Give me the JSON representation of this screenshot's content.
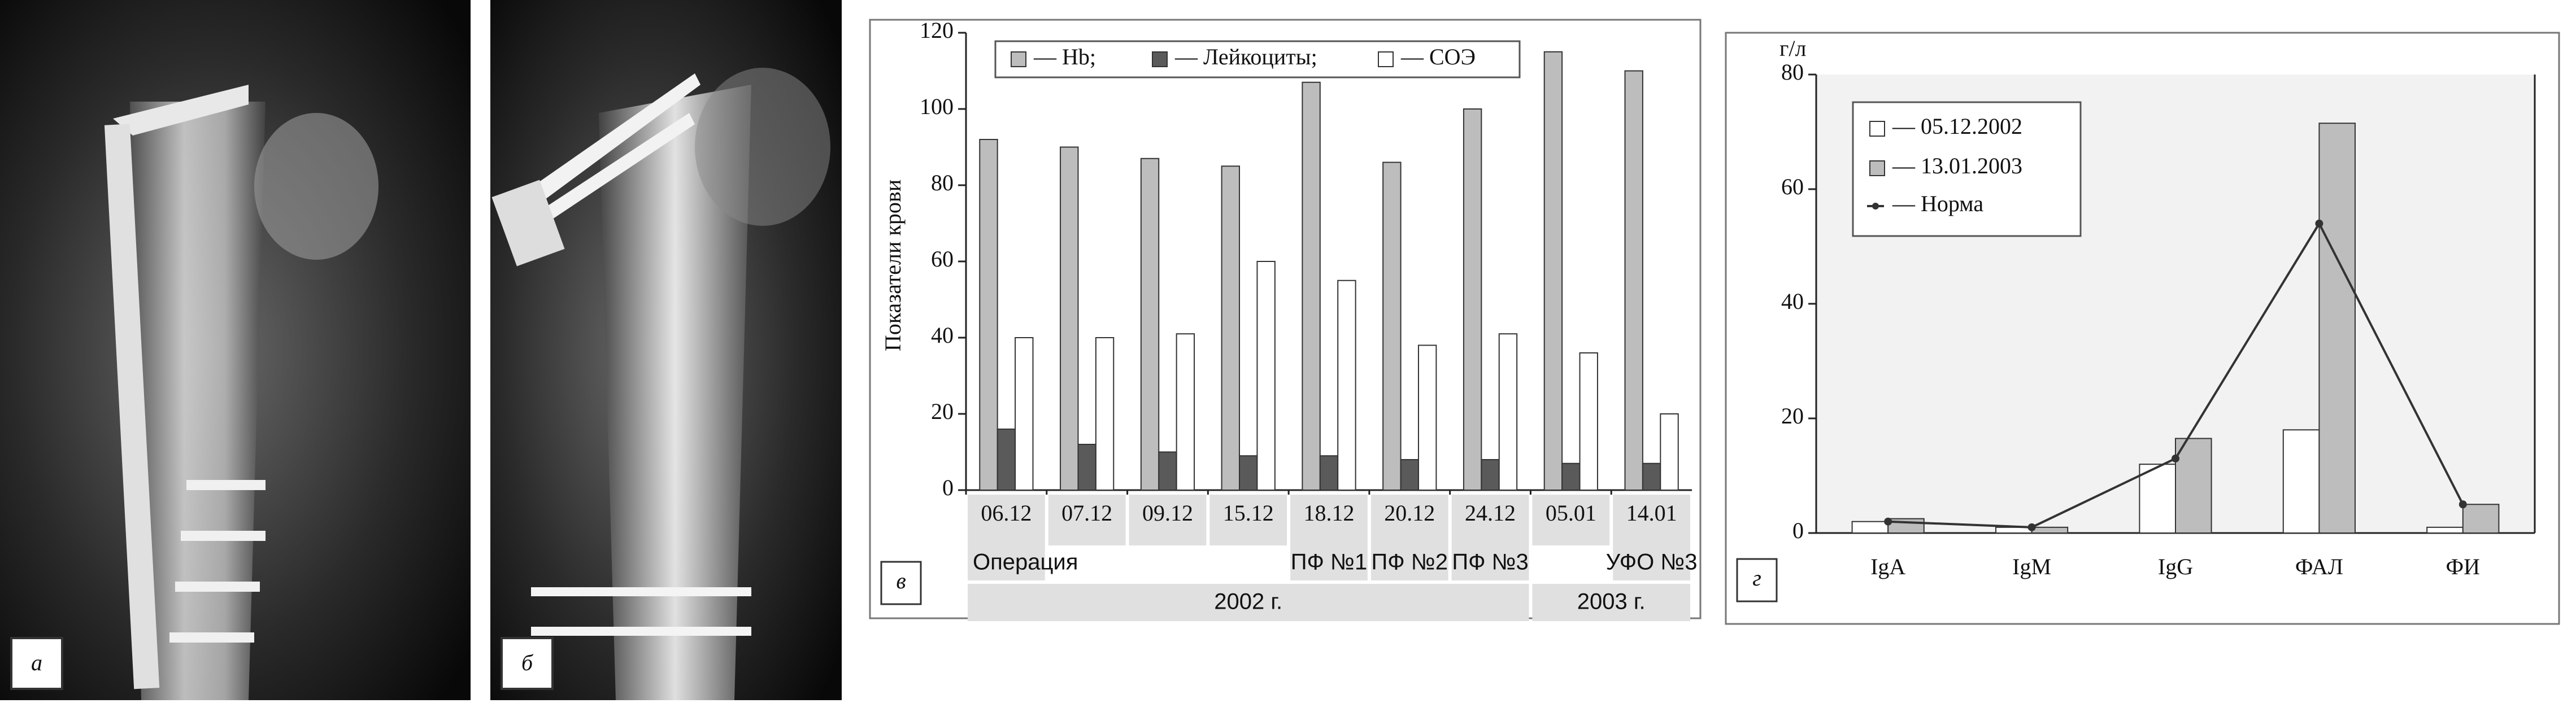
{
  "panel_labels": {
    "a": "а",
    "b": "б"
  },
  "chart_data": [
    {
      "type": "bar",
      "panel_label": "в",
      "y_label": "Показатели крови",
      "categories": [
        "06.12",
        "07.12",
        "09.12",
        "15.12",
        "18.12",
        "20.12",
        "24.12",
        "05.01",
        "14.01"
      ],
      "notes": [
        "Операция",
        null,
        null,
        null,
        "ПФ №1",
        "ПФ №2",
        "ПФ №3",
        null,
        "УФО №3"
      ],
      "years": [
        "2002 г.",
        null,
        null,
        null,
        null,
        null,
        null,
        "2003 г.",
        null
      ],
      "series": [
        {
          "name": "— Hb;",
          "color": "#bdbdbd",
          "values": [
            92,
            90,
            87,
            85,
            107,
            86,
            100,
            115,
            110
          ]
        },
        {
          "name": "— Лейкоциты;",
          "color": "#5a5a5a",
          "values": [
            16,
            12,
            10,
            9,
            9,
            8,
            8,
            7,
            7
          ]
        },
        {
          "name": "— СОЭ",
          "color": "#ffffff",
          "values": [
            40,
            40,
            41,
            60,
            55,
            38,
            41,
            36,
            20
          ]
        }
      ],
      "ylim": [
        0,
        120
      ],
      "yticks": [
        0,
        20,
        40,
        60,
        80,
        100,
        120
      ],
      "grid": false
    },
    {
      "type": "bar_line",
      "panel_label": "г",
      "y_label": "г/л",
      "categories": [
        "IgA",
        "IgM",
        "IgG",
        "ФАЛ",
        "ФИ"
      ],
      "series": [
        {
          "name": "— 05.12.2002",
          "color": "#ffffff",
          "values": [
            2,
            1,
            12,
            18,
            1
          ]
        },
        {
          "name": "— 13.01.2003",
          "color": "#bdbdbd",
          "values": [
            2.5,
            1,
            16.5,
            71.5,
            5
          ]
        },
        {
          "name": "— Норма",
          "color": "#333333",
          "type": "line",
          "values": [
            2,
            1,
            13,
            54,
            5
          ]
        }
      ],
      "ylim": [
        0,
        80
      ],
      "yticks": [
        0,
        20,
        40,
        60,
        80
      ],
      "grid": false
    }
  ]
}
